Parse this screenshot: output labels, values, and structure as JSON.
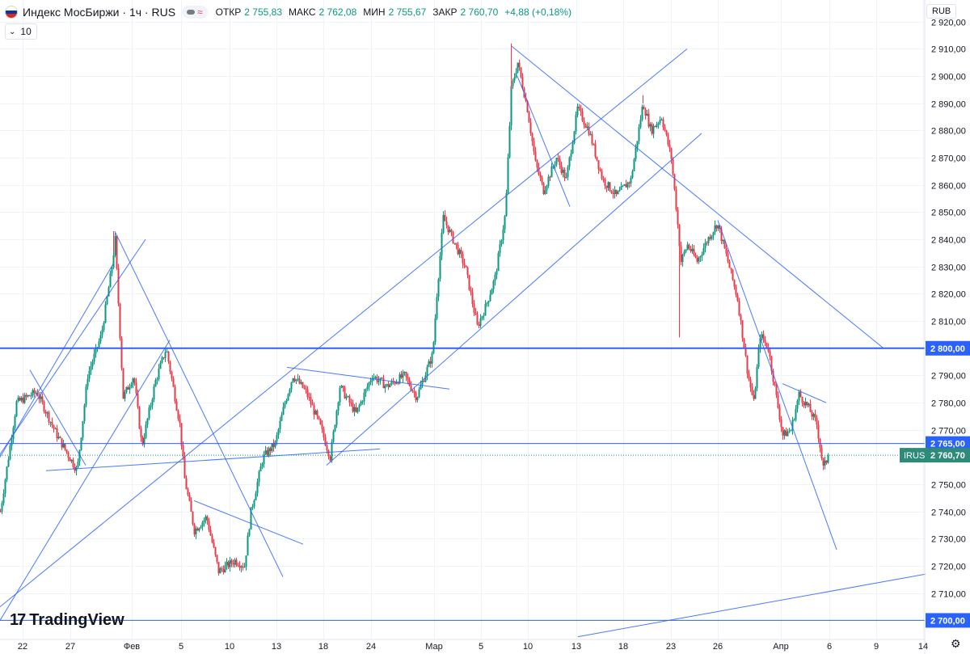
{
  "header": {
    "title": "Индекс МосБиржи · 1ч · RUS",
    "badge_symbol": "≈",
    "ohlc": [
      {
        "label": "ОТКР",
        "value": "2 755,83"
      },
      {
        "label": "МАКС",
        "value": "2 762,08"
      },
      {
        "label": "МИН",
        "value": "2 755,67"
      },
      {
        "label": "ЗАКР",
        "value": "2 760,70"
      }
    ],
    "change": "+4,88 (+0,18%)",
    "flag_colors": [
      "#ffffff",
      "#0039a6",
      "#d52b1e"
    ]
  },
  "volume_toggle": {
    "label": "10",
    "icon": "chevron-down-icon"
  },
  "currency": "RUB",
  "logo": {
    "mark": "17",
    "text": "TradingView"
  },
  "settings_icon": "gear-icon",
  "colors": {
    "up": "#089981",
    "down": "#f23645",
    "line": "#2962ff",
    "label_bg": "#2962ff",
    "last_price_bg": "#2e8b7a"
  },
  "chart_data": {
    "type": "candlestick",
    "title": "Индекс МосБиржи · 1ч · RUS",
    "ylim": [
      2693,
      2925
    ],
    "yticks": [
      {
        "value": 2920,
        "label": "2 920,00"
      },
      {
        "value": 2910,
        "label": "2 910,00"
      },
      {
        "value": 2900,
        "label": "2 900,00"
      },
      {
        "value": 2890,
        "label": "2 890,00"
      },
      {
        "value": 2880,
        "label": "2 880,00"
      },
      {
        "value": 2870,
        "label": "2 870,00"
      },
      {
        "value": 2860,
        "label": "2 860,00"
      },
      {
        "value": 2850,
        "label": "2 850,00"
      },
      {
        "value": 2840,
        "label": "2 840,00"
      },
      {
        "value": 2830,
        "label": "2 830,00"
      },
      {
        "value": 2820,
        "label": "2 820,00"
      },
      {
        "value": 2810,
        "label": "2 810,00"
      },
      {
        "value": 2790,
        "label": "2 790,00"
      },
      {
        "value": 2780,
        "label": "2 780,00"
      },
      {
        "value": 2770,
        "label": "2 770,00"
      },
      {
        "value": 2750,
        "label": "2 750,00"
      },
      {
        "value": 2740,
        "label": "2 740,00"
      },
      {
        "value": 2730,
        "label": "2 730,00"
      },
      {
        "value": 2720,
        "label": "2 720,00"
      },
      {
        "value": 2710,
        "label": "2 710,00"
      }
    ],
    "xticks": [
      {
        "t": 28,
        "label": "22"
      },
      {
        "t": 87,
        "label": "27"
      },
      {
        "t": 163,
        "label": "Фев"
      },
      {
        "t": 224,
        "label": "5"
      },
      {
        "t": 284,
        "label": "10"
      },
      {
        "t": 342,
        "label": "13"
      },
      {
        "t": 400,
        "label": "18"
      },
      {
        "t": 459,
        "label": "24"
      },
      {
        "t": 537,
        "label": "Мар"
      },
      {
        "t": 595,
        "label": "5"
      },
      {
        "t": 653,
        "label": "10"
      },
      {
        "t": 713,
        "label": "13"
      },
      {
        "t": 771,
        "label": "18"
      },
      {
        "t": 830,
        "label": "23"
      },
      {
        "t": 888,
        "label": "26"
      },
      {
        "t": 966,
        "label": "Апр"
      },
      {
        "t": 1026,
        "label": "6"
      },
      {
        "t": 1084,
        "label": "9"
      },
      {
        "t": 1142,
        "label": "14"
      }
    ],
    "horizontal_levels": [
      {
        "value": 2800,
        "label": "2 800,00",
        "weight": "thick"
      },
      {
        "value": 2765,
        "label": "2 765,00",
        "weight": "thin"
      },
      {
        "value": 2700,
        "label": "2 700,00",
        "weight": "thin"
      }
    ],
    "last_price": {
      "symbol": "IRUS",
      "value": 2760.7,
      "label": "2 760,70"
    },
    "path_anchors": [
      [
        0,
        2740
      ],
      [
        20,
        2780
      ],
      [
        45,
        2784
      ],
      [
        70,
        2768
      ],
      [
        95,
        2755
      ],
      [
        108,
        2790
      ],
      [
        125,
        2805
      ],
      [
        138,
        2830
      ],
      [
        142,
        2840
      ],
      [
        148,
        2805
      ],
      [
        152,
        2782
      ],
      [
        165,
        2790
      ],
      [
        175,
        2764
      ],
      [
        192,
        2788
      ],
      [
        205,
        2800
      ],
      [
        210,
        2792
      ],
      [
        222,
        2772
      ],
      [
        228,
        2752
      ],
      [
        240,
        2733
      ],
      [
        255,
        2738
      ],
      [
        270,
        2718
      ],
      [
        290,
        2722
      ],
      [
        302,
        2720
      ],
      [
        310,
        2740
      ],
      [
        325,
        2760
      ],
      [
        340,
        2765
      ],
      [
        352,
        2780
      ],
      [
        362,
        2790
      ],
      [
        378,
        2784
      ],
      [
        395,
        2772
      ],
      [
        408,
        2760
      ],
      [
        420,
        2786
      ],
      [
        440,
        2776
      ],
      [
        460,
        2790
      ],
      [
        478,
        2786
      ],
      [
        500,
        2790
      ],
      [
        515,
        2782
      ],
      [
        535,
        2798
      ],
      [
        540,
        2820
      ],
      [
        548,
        2848
      ],
      [
        560,
        2840
      ],
      [
        575,
        2830
      ],
      [
        590,
        2808
      ],
      [
        600,
        2815
      ],
      [
        612,
        2826
      ],
      [
        625,
        2850
      ],
      [
        632,
        2895
      ],
      [
        640,
        2905
      ],
      [
        652,
        2888
      ],
      [
        662,
        2868
      ],
      [
        672,
        2858
      ],
      [
        688,
        2870
      ],
      [
        700,
        2862
      ],
      [
        714,
        2888
      ],
      [
        728,
        2880
      ],
      [
        745,
        2862
      ],
      [
        762,
        2856
      ],
      [
        780,
        2862
      ],
      [
        795,
        2890
      ],
      [
        805,
        2880
      ],
      [
        818,
        2885
      ],
      [
        830,
        2870
      ],
      [
        836,
        2852
      ],
      [
        842,
        2832
      ],
      [
        850,
        2838
      ],
      [
        862,
        2832
      ],
      [
        875,
        2840
      ],
      [
        887,
        2846
      ],
      [
        900,
        2832
      ],
      [
        912,
        2818
      ],
      [
        925,
        2790
      ],
      [
        932,
        2780
      ],
      [
        940,
        2805
      ],
      [
        950,
        2800
      ],
      [
        960,
        2782
      ],
      [
        968,
        2768
      ],
      [
        978,
        2770
      ],
      [
        988,
        2783
      ],
      [
        1000,
        2778
      ],
      [
        1010,
        2772
      ],
      [
        1018,
        2756
      ],
      [
        1025,
        2760.7
      ]
    ],
    "trend_lines": [
      [
        [
          0,
          2761
        ],
        [
          180,
          2840
        ]
      ],
      [
        [
          0,
          2760
        ],
        [
          140,
          2831
        ]
      ],
      [
        [
          0,
          2700
        ],
        [
          210,
          2803
        ]
      ],
      [
        [
          37,
          2792
        ],
        [
          106,
          2757
        ]
      ],
      [
        [
          142,
          2843
        ],
        [
          350,
          2716
        ]
      ],
      [
        [
          57,
          2755
        ],
        [
          470,
          2763
        ]
      ],
      [
        [
          0,
          2705
        ],
        [
          850,
          2910
        ]
      ],
      [
        [
          355,
          2793
        ],
        [
          556,
          2785
        ]
      ],
      [
        [
          404,
          2757
        ],
        [
          868,
          2879
        ]
      ],
      [
        [
          240,
          2744
        ],
        [
          375,
          2728
        ]
      ],
      [
        [
          633,
          2911
        ],
        [
          1093,
          2800
        ]
      ],
      [
        [
          640,
          2900
        ],
        [
          705,
          2852
        ]
      ],
      [
        [
          888,
          2847
        ],
        [
          1035,
          2726
        ]
      ],
      [
        [
          968,
          2787
        ],
        [
          1022,
          2780
        ]
      ],
      [
        [
          715,
          2694
        ],
        [
          1145,
          2717
        ]
      ]
    ]
  }
}
